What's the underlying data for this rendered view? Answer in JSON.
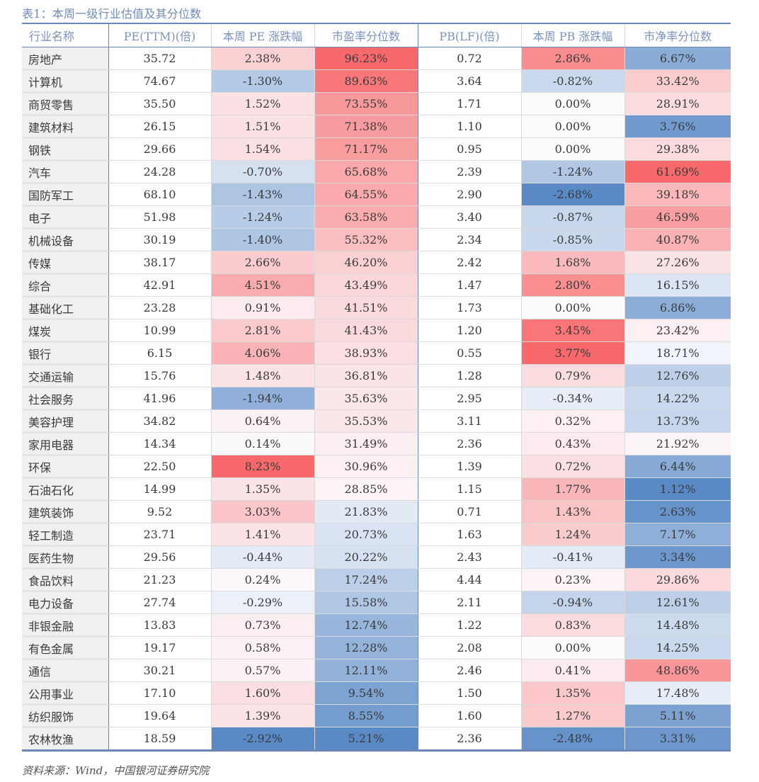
{
  "caption": "表1：本周一级行业估值及其分位数",
  "source": "资料来源：Wind，中国银河证券研究院",
  "colors": {
    "red": "#F8696B",
    "white": "#FCFCFF",
    "blue": "#5A8AC6",
    "header_text": "#7A93BD",
    "rule": "#6A86B8",
    "name_bg": "#F0F0F0"
  },
  "table": {
    "headers": [
      "行业名称",
      "PE(TTM)(倍)",
      "本周 PE 涨跌幅",
      "市盈率分位数",
      "PB(LF)(倍)",
      "本周 PB 涨跌幅",
      "市净率分位数"
    ],
    "rows": [
      [
        "房地产",
        "35.72",
        "2.38%",
        "96.23%",
        "0.72",
        "2.86%",
        "6.67%"
      ],
      [
        "计算机",
        "74.67",
        "-1.30%",
        "89.63%",
        "3.64",
        "-0.82%",
        "33.42%"
      ],
      [
        "商贸零售",
        "35.50",
        "1.52%",
        "73.55%",
        "1.71",
        "0.00%",
        "28.91%"
      ],
      [
        "建筑材料",
        "26.15",
        "1.51%",
        "71.38%",
        "1.10",
        "0.00%",
        "3.76%"
      ],
      [
        "钢铁",
        "29.66",
        "1.54%",
        "71.17%",
        "0.95",
        "0.00%",
        "29.38%"
      ],
      [
        "汽车",
        "24.28",
        "-0.70%",
        "65.68%",
        "2.39",
        "-1.24%",
        "61.69%"
      ],
      [
        "国防军工",
        "68.10",
        "-1.43%",
        "64.55%",
        "2.90",
        "-2.68%",
        "39.18%"
      ],
      [
        "电子",
        "51.98",
        "-1.24%",
        "63.58%",
        "3.40",
        "-0.87%",
        "46.59%"
      ],
      [
        "机械设备",
        "30.19",
        "-1.40%",
        "55.32%",
        "2.34",
        "-0.85%",
        "40.87%"
      ],
      [
        "传媒",
        "38.17",
        "2.66%",
        "46.20%",
        "2.42",
        "1.68%",
        "27.26%"
      ],
      [
        "综合",
        "42.91",
        "4.51%",
        "43.49%",
        "1.47",
        "2.80%",
        "16.15%"
      ],
      [
        "基础化工",
        "23.28",
        "0.91%",
        "41.51%",
        "1.73",
        "0.00%",
        "6.86%"
      ],
      [
        "煤炭",
        "10.99",
        "2.81%",
        "41.43%",
        "1.20",
        "3.45%",
        "23.42%"
      ],
      [
        "银行",
        "6.15",
        "4.06%",
        "38.93%",
        "0.55",
        "3.77%",
        "18.71%"
      ],
      [
        "交通运输",
        "15.76",
        "1.48%",
        "36.81%",
        "1.28",
        "0.79%",
        "12.76%"
      ],
      [
        "社会服务",
        "41.96",
        "-1.94%",
        "35.63%",
        "2.95",
        "-0.34%",
        "14.22%"
      ],
      [
        "美容护理",
        "34.82",
        "0.64%",
        "35.53%",
        "3.11",
        "0.32%",
        "13.73%"
      ],
      [
        "家用电器",
        "14.34",
        "0.14%",
        "31.49%",
        "2.36",
        "0.43%",
        "21.92%"
      ],
      [
        "环保",
        "22.50",
        "8.23%",
        "30.96%",
        "1.39",
        "0.72%",
        "6.44%"
      ],
      [
        "石油石化",
        "14.99",
        "1.35%",
        "28.85%",
        "1.15",
        "1.77%",
        "1.12%"
      ],
      [
        "建筑装饰",
        "9.52",
        "3.03%",
        "21.83%",
        "0.71",
        "1.43%",
        "2.63%"
      ],
      [
        "轻工制造",
        "23.71",
        "1.41%",
        "20.73%",
        "1.63",
        "1.24%",
        "7.17%"
      ],
      [
        "医药生物",
        "29.56",
        "-0.44%",
        "20.22%",
        "2.43",
        "-0.41%",
        "3.34%"
      ],
      [
        "食品饮料",
        "21.23",
        "0.24%",
        "17.24%",
        "4.44",
        "0.23%",
        "29.86%"
      ],
      [
        "电力设备",
        "27.74",
        "-0.29%",
        "15.58%",
        "2.11",
        "-0.94%",
        "12.61%"
      ],
      [
        "非银金融",
        "13.83",
        "0.73%",
        "12.74%",
        "1.22",
        "0.83%",
        "14.48%"
      ],
      [
        "有色金属",
        "19.17",
        "0.58%",
        "12.28%",
        "2.08",
        "0.00%",
        "14.25%"
      ],
      [
        "通信",
        "30.21",
        "0.57%",
        "12.11%",
        "2.46",
        "0.41%",
        "48.86%"
      ],
      [
        "公用事业",
        "17.10",
        "1.60%",
        "9.54%",
        "1.50",
        "1.35%",
        "17.48%"
      ],
      [
        "纺织服饰",
        "19.64",
        "1.39%",
        "8.55%",
        "1.60",
        "1.27%",
        "5.11%"
      ],
      [
        "农林牧渔",
        "18.59",
        "-2.92%",
        "5.21%",
        "2.36",
        "-2.48%",
        "3.31%"
      ]
    ],
    "heatmap_columns": {
      "2": {
        "min": -2.92,
        "mid": 0,
        "max": 8.23
      },
      "3": {
        "min": 5.21,
        "mid": 25,
        "max": 96.23
      },
      "5": {
        "min": -2.68,
        "mid": 0,
        "max": 3.77
      },
      "6": {
        "min": 1.12,
        "mid": 20,
        "max": 61.69
      }
    }
  }
}
